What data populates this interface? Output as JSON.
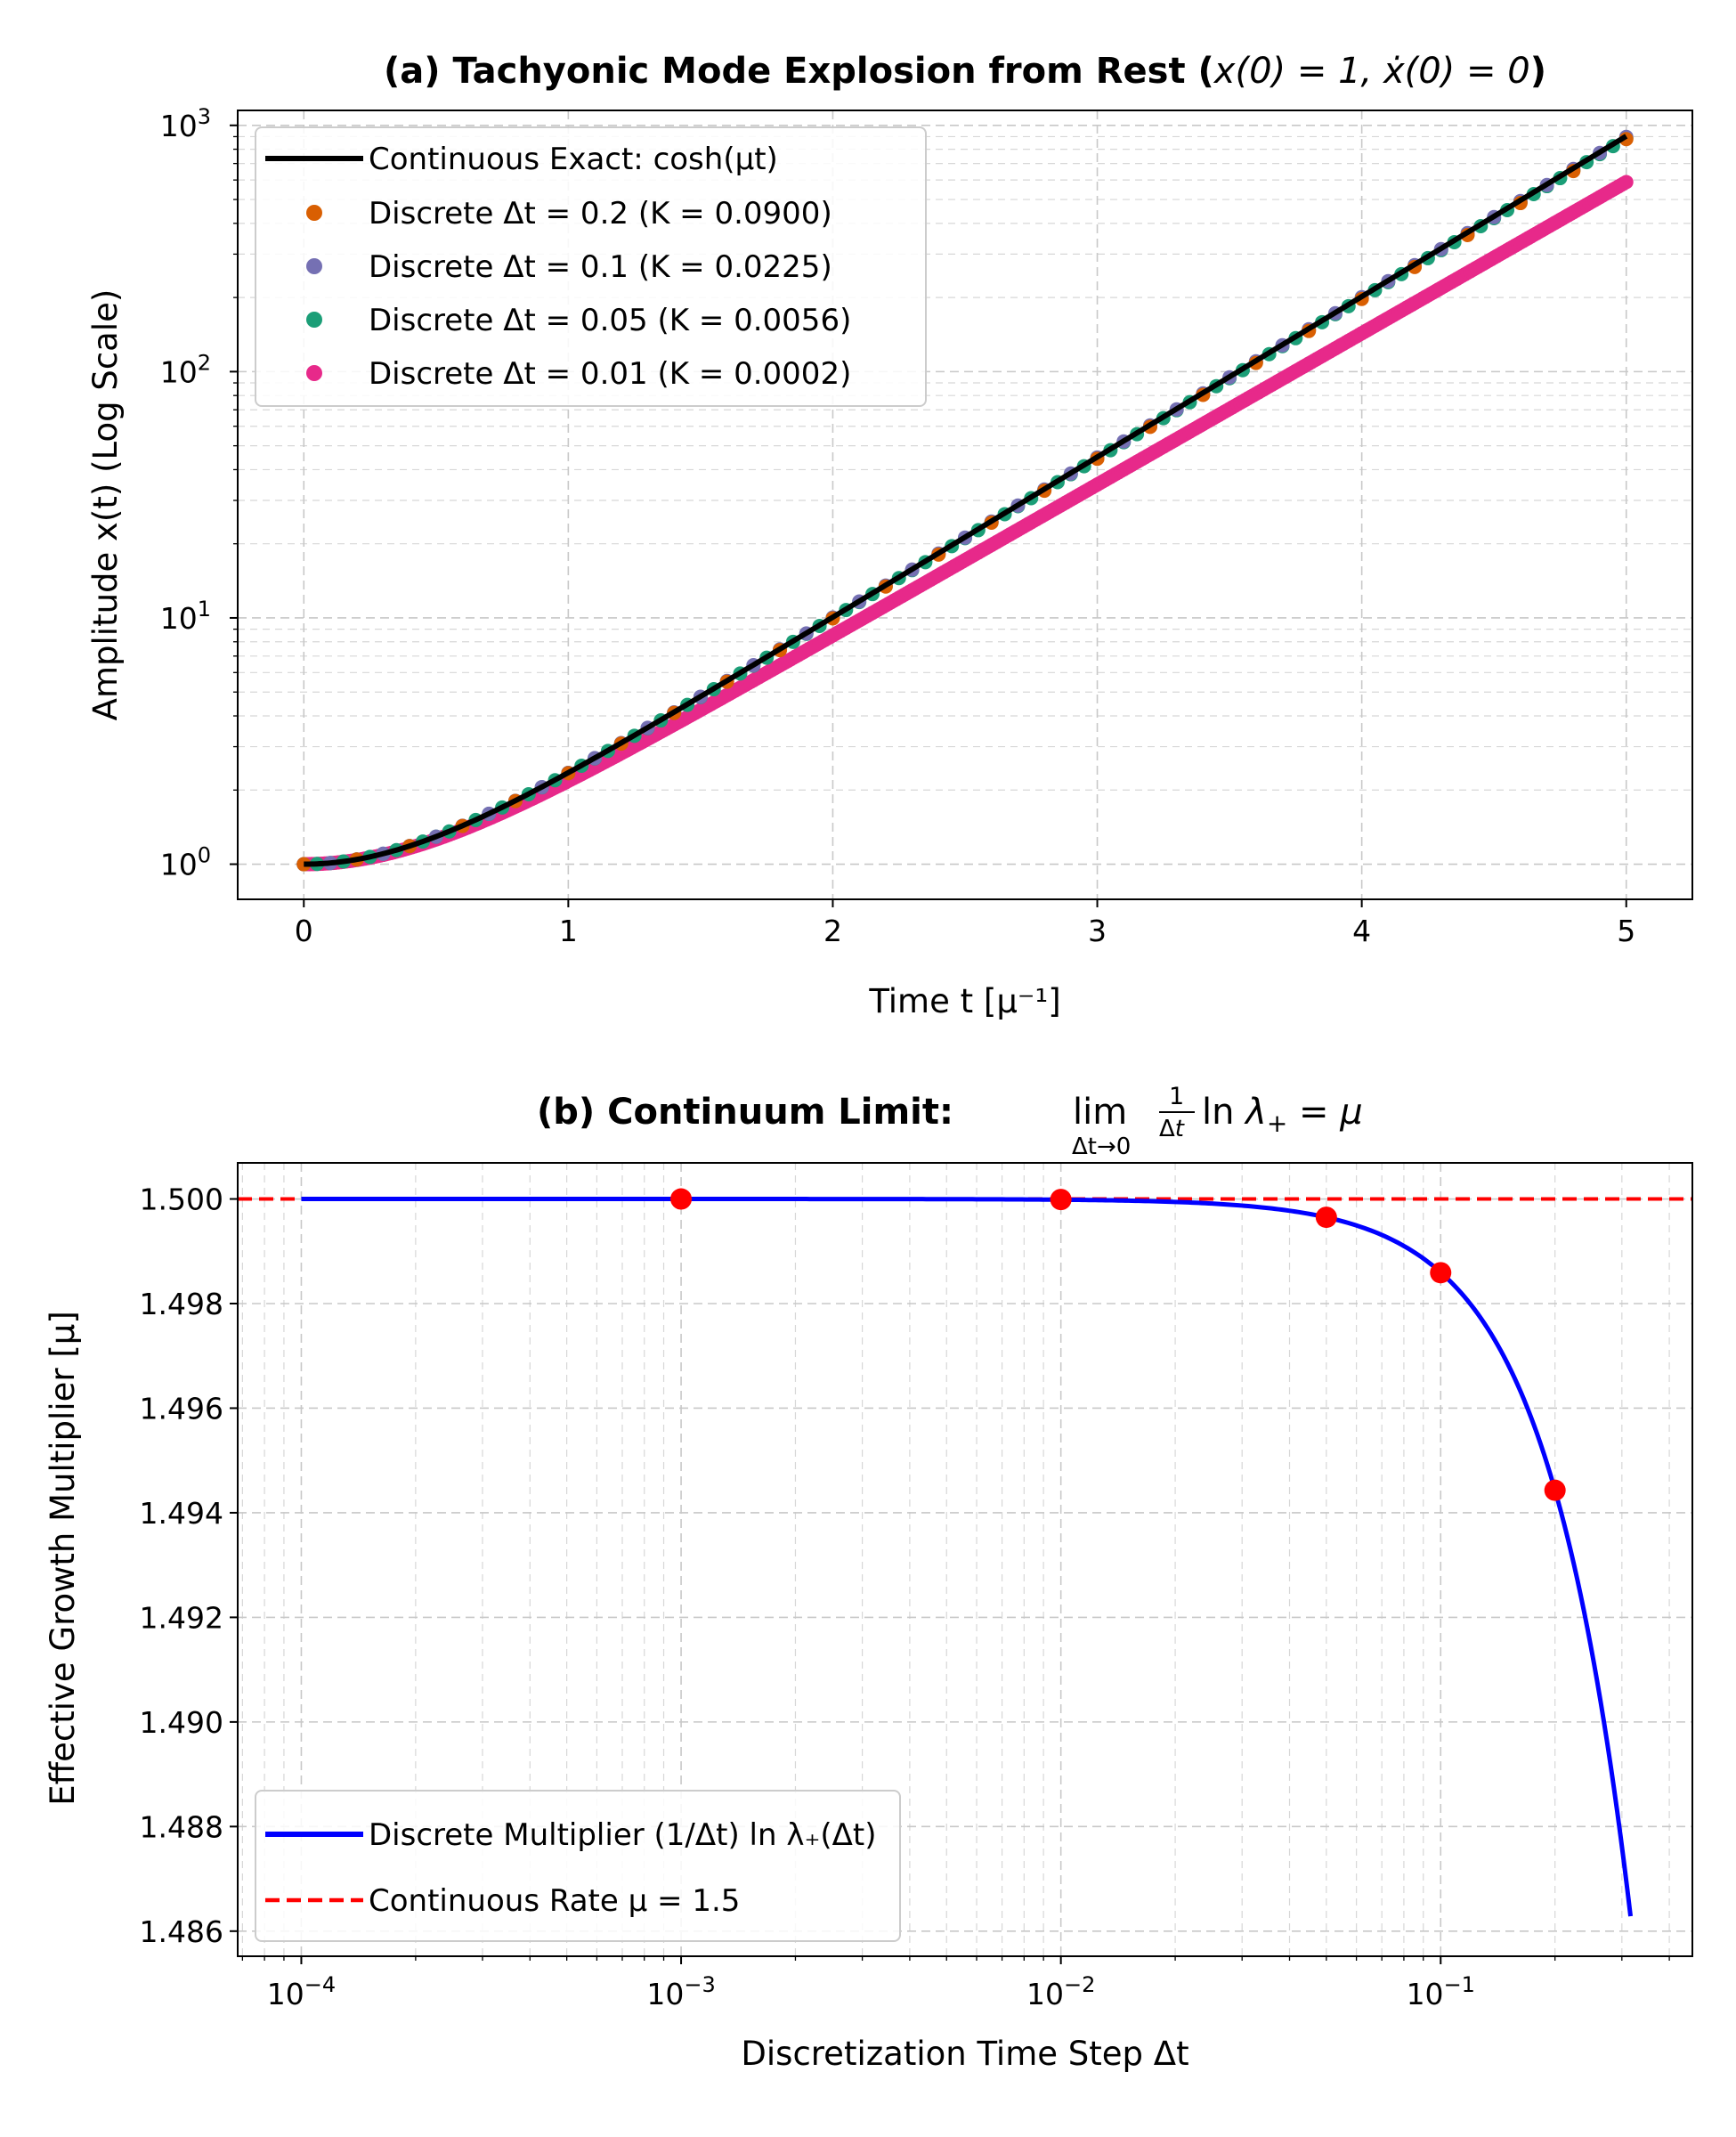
{
  "chart_data": [
    {
      "type": "line",
      "title": "(a) Tachyonic Mode Explosion from Rest (x(0) = 1, ẋ(0) = 0)",
      "title_parts": {
        "text": "(a) Tachyonic Mode Explosion from Rest (",
        "math": "x(0) = 1, ẋ(0) = 0",
        "close": ")"
      },
      "xlabel": "Time t [μ⁻¹]",
      "ylabel": "Amplitude x(t) (Log Scale)",
      "xlim": [
        -0.25,
        5.25
      ],
      "ylim": [
        0.72,
        1150
      ],
      "yscale": "log",
      "grid": true,
      "legend_position": "top-left",
      "x_ticks": [
        "0",
        "1",
        "2",
        "3",
        "4",
        "5"
      ],
      "y_ticks": [
        {
          "base": "10",
          "exp": "0"
        },
        {
          "base": "10",
          "exp": "1"
        },
        {
          "base": "10",
          "exp": "2"
        },
        {
          "base": "10",
          "exp": "3"
        }
      ],
      "mu": 1.5,
      "series": [
        {
          "name": "Continuous Exact: cosh(μt)",
          "style": "line",
          "color": "#000000",
          "function": "cosh(1.5*t)",
          "x_range": [
            0,
            5
          ]
        },
        {
          "name": "Discrete Δt = 0.2 (K = 0.0900)",
          "style": "markers",
          "color": "#d95f02",
          "dt": 0.2,
          "K": 0.09,
          "x_range": [
            0,
            5
          ]
        },
        {
          "name": "Discrete Δt = 0.1 (K = 0.0225)",
          "style": "markers",
          "color": "#7570b3",
          "dt": 0.1,
          "K": 0.0225,
          "x_range": [
            0,
            5
          ]
        },
        {
          "name": "Discrete Δt = 0.05 (K = 0.0056)",
          "style": "markers",
          "color": "#1b9e77",
          "dt": 0.05,
          "K": 0.0056,
          "x_range": [
            0,
            5
          ]
        },
        {
          "name": "Discrete Δt = 0.01 (K = 0.0002)",
          "style": "markers",
          "color": "#e7298a",
          "dt": 0.01,
          "K": 0.0002,
          "x_range": [
            0,
            5
          ]
        }
      ]
    },
    {
      "type": "line",
      "title": "(b) Continuum Limit: lim_{Δt→0} (1/Δt) ln λ₊ = μ",
      "title_parts": {
        "text": "(b) Continuum Limit: "
      },
      "xlabel": "Discretization Time Step Δt",
      "ylabel": "Effective Growth Multiplier [μ]",
      "xscale": "log",
      "xlim": [
        6.8e-05,
        0.46
      ],
      "ylim": [
        1.48552,
        1.50069
      ],
      "grid": true,
      "legend_position": "bottom-left",
      "x_ticks": [
        {
          "base": "10",
          "exp": "−4"
        },
        {
          "base": "10",
          "exp": "−3"
        },
        {
          "base": "10",
          "exp": "−2"
        },
        {
          "base": "10",
          "exp": "−1"
        }
      ],
      "y_ticks": [
        "1.486",
        "1.488",
        "1.490",
        "1.492",
        "1.494",
        "1.496",
        "1.498",
        "1.500"
      ],
      "series": [
        {
          "name": "Discrete Multiplier (1/Δt) ln λ₊(Δt)",
          "style": "line",
          "color": "#0000ff",
          "function": "ln((2+K+sqrt((2+K)^2-4))/2)/dt, K=(1.5*dt)^2",
          "x_range": [
            0.0001,
            0.3162
          ]
        },
        {
          "name": "Continuous Rate μ = 1.5",
          "style": "dashed",
          "color": "#ff0000",
          "y": 1.5
        },
        {
          "name": "",
          "style": "markers",
          "color": "#ff0000",
          "x": [
            0.001,
            0.01,
            0.05,
            0.1,
            0.2
          ],
          "y": [
            1.5,
            1.49999,
            1.49965,
            1.49859,
            1.49443
          ]
        }
      ]
    }
  ]
}
